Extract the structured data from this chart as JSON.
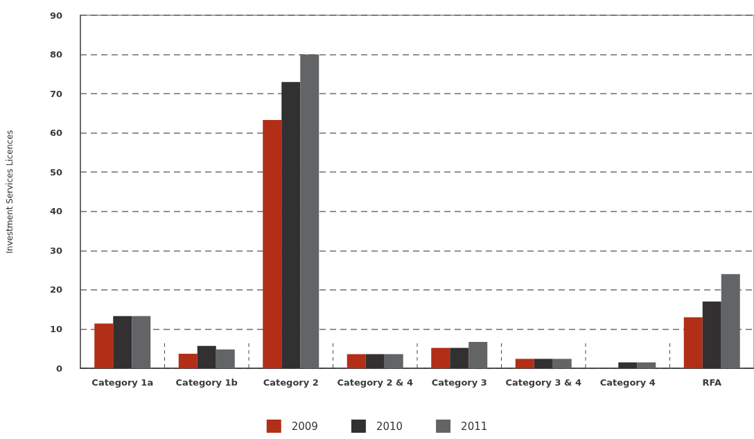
{
  "chart_data": {
    "type": "bar",
    "ylabel": "Investment Services Licences",
    "categories": [
      "Category 1a",
      "Category 1b",
      "Category 2",
      "Category 2 & 4",
      "Category 3",
      "Category 3 & 4",
      "Category 4",
      "RFA"
    ],
    "series": [
      {
        "name": "2009",
        "color": "#b22e17",
        "values": [
          11.4,
          3.7,
          63.3,
          3.6,
          5.2,
          2.4,
          0,
          13
        ]
      },
      {
        "name": "2010",
        "color": "#323031",
        "values": [
          13.3,
          5.7,
          73,
          3.6,
          5.2,
          2.4,
          1.5,
          17
        ]
      },
      {
        "name": "2011",
        "color": "#636466",
        "values": [
          13.3,
          4.8,
          80,
          3.6,
          6.7,
          2.4,
          1.5,
          24
        ]
      }
    ],
    "ylim": [
      0,
      90
    ],
    "yticks": [
      0,
      10,
      20,
      30,
      40,
      50,
      60,
      70,
      80,
      90
    ],
    "grid": "y",
    "legend": "bottom"
  }
}
